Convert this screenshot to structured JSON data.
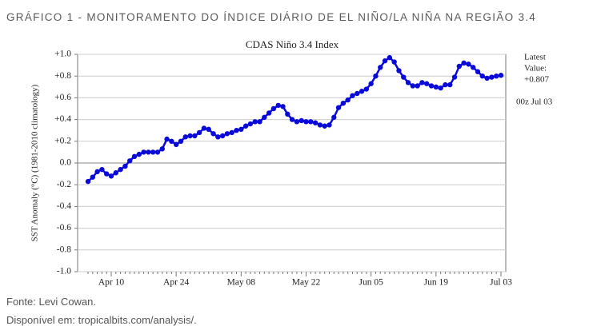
{
  "header": {
    "title": "GRÁFICO 1 - MONITORAMENTO DO ÍNDICE DIÁRIO DE EL NIÑO/LA NIÑA NA REGIÃO 3.4"
  },
  "source": [
    "Fonte:  Levi Cowan.",
    "Disponível em: tropicalbits.com/analysis/."
  ],
  "chart_data": {
    "type": "line",
    "title": "CDAS Niño 3.4 Index",
    "y_label": "SST Anomaly (°C) (1981-2010 climatology)",
    "annotations": [
      "Latest",
      "Value:",
      "+0.807",
      "00z Jul 03"
    ],
    "categories": [
      null,
      null,
      null,
      null,
      null,
      "Apr 10",
      null,
      null,
      null,
      null,
      null,
      null,
      null,
      null,
      null,
      null,
      null,
      null,
      null,
      "Apr 24",
      null,
      null,
      null,
      null,
      null,
      null,
      null,
      null,
      null,
      null,
      null,
      null,
      null,
      "May 08",
      null,
      null,
      null,
      null,
      null,
      null,
      null,
      null,
      null,
      null,
      null,
      null,
      null,
      "May 22",
      null,
      null,
      null,
      null,
      null,
      null,
      null,
      null,
      null,
      null,
      null,
      null,
      null,
      "Jun 05",
      null,
      null,
      null,
      null,
      null,
      null,
      null,
      null,
      null,
      null,
      null,
      null,
      null,
      "Jun 19",
      null,
      null,
      null,
      null,
      null,
      null,
      null,
      null,
      null,
      null,
      null,
      null,
      null,
      "Jul 03"
    ],
    "series": [
      {
        "name": "Niño 3.4",
        "color": "#0a0ad8",
        "values": [
          -0.17,
          -0.13,
          -0.08,
          -0.06,
          -0.1,
          -0.12,
          -0.09,
          -0.06,
          -0.03,
          0.02,
          0.06,
          0.08,
          0.1,
          0.1,
          0.1,
          0.1,
          0.13,
          0.22,
          0.2,
          0.17,
          0.2,
          0.24,
          0.25,
          0.25,
          0.28,
          0.32,
          0.31,
          0.27,
          0.24,
          0.25,
          0.27,
          0.28,
          0.3,
          0.31,
          0.34,
          0.36,
          0.38,
          0.38,
          0.42,
          0.46,
          0.5,
          0.53,
          0.52,
          0.45,
          0.4,
          0.38,
          0.39,
          0.38,
          0.38,
          0.37,
          0.35,
          0.34,
          0.35,
          0.42,
          0.51,
          0.55,
          0.58,
          0.62,
          0.64,
          0.66,
          0.68,
          0.73,
          0.8,
          0.88,
          0.94,
          0.97,
          0.93,
          0.85,
          0.79,
          0.74,
          0.71,
          0.71,
          0.74,
          0.73,
          0.71,
          0.7,
          0.69,
          0.72,
          0.72,
          0.79,
          0.89,
          0.92,
          0.91,
          0.88,
          0.84,
          0.8,
          0.78,
          0.79,
          0.8,
          0.807
        ]
      }
    ],
    "ylim": [
      -1,
      1
    ],
    "yticks": [
      {
        "value": -1,
        "label": "-1.0"
      },
      {
        "value": -0.8,
        "label": "-0.8"
      },
      {
        "value": -0.6,
        "label": "-0.6"
      },
      {
        "value": -0.4,
        "label": "-0.4"
      },
      {
        "value": -0.2,
        "label": "-0.2"
      },
      {
        "value": 0,
        "label": "0.0"
      },
      {
        "value": 0.2,
        "label": "+0.2"
      },
      {
        "value": 0.4,
        "label": "+0.4"
      },
      {
        "value": 0.6,
        "label": "+0.6"
      },
      {
        "value": 0.8,
        "label": "+0.8"
      },
      {
        "value": 1,
        "label": "+1.0"
      }
    ],
    "grid": true
  }
}
